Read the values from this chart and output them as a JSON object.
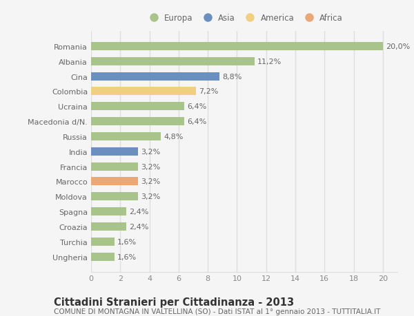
{
  "countries": [
    "Romania",
    "Albania",
    "Cina",
    "Colombia",
    "Ucraina",
    "Macedonia d/N.",
    "Russia",
    "India",
    "Francia",
    "Marocco",
    "Moldova",
    "Spagna",
    "Croazia",
    "Turchia",
    "Ungheria"
  ],
  "values": [
    20.0,
    11.2,
    8.8,
    7.2,
    6.4,
    6.4,
    4.8,
    3.2,
    3.2,
    3.2,
    3.2,
    2.4,
    2.4,
    1.6,
    1.6
  ],
  "labels": [
    "20,0%",
    "11,2%",
    "8,8%",
    "7,2%",
    "6,4%",
    "6,4%",
    "4,8%",
    "3,2%",
    "3,2%",
    "3,2%",
    "3,2%",
    "2,4%",
    "2,4%",
    "1,6%",
    "1,6%"
  ],
  "continents": [
    "Europa",
    "Europa",
    "Asia",
    "America",
    "Europa",
    "Europa",
    "Europa",
    "Asia",
    "Europa",
    "Africa",
    "Europa",
    "Europa",
    "Europa",
    "Europa",
    "Europa"
  ],
  "colors": {
    "Europa": "#a8c48a",
    "Asia": "#6b8fbf",
    "America": "#f0d080",
    "Africa": "#e8a878"
  },
  "legend_items": [
    "Europa",
    "Asia",
    "America",
    "Africa"
  ],
  "legend_colors": [
    "#a8c48a",
    "#6b8fbf",
    "#f0d080",
    "#e8a878"
  ],
  "xlim": [
    0,
    21
  ],
  "xticks": [
    0,
    2,
    4,
    6,
    8,
    10,
    12,
    14,
    16,
    18,
    20
  ],
  "title": "Cittadini Stranieri per Cittadinanza - 2013",
  "subtitle": "COMUNE DI MONTAGNA IN VALTELLINA (SO) - Dati ISTAT al 1° gennaio 2013 - TUTTITALIA.IT",
  "bg_color": "#f5f5f5",
  "plot_bg_color": "#f5f5f5",
  "grid_color": "#dddddd",
  "bar_height": 0.55,
  "label_fontsize": 8,
  "ytick_fontsize": 8,
  "xtick_fontsize": 8,
  "title_fontsize": 10.5,
  "subtitle_fontsize": 7.5
}
